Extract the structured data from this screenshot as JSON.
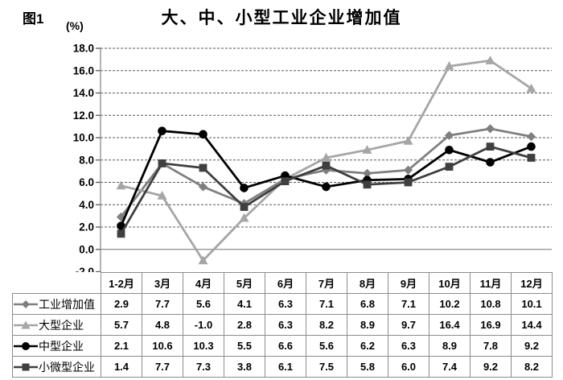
{
  "figure": {
    "label": "图1",
    "unit": "(%)",
    "title": "大、中、小型工业企业增加值"
  },
  "chart_data": {
    "type": "line",
    "title": "大、中、小型工业企业增加值",
    "ylabel": "(%)",
    "ylim": [
      -2.0,
      18.0
    ],
    "ytick_step": 2.0,
    "grid": "horizontal-dashed",
    "legend_position": "data-table-rows",
    "categories": [
      "1-2月",
      "3月",
      "4月",
      "5月",
      "6月",
      "7月",
      "8月",
      "9月",
      "10月",
      "11月",
      "12月"
    ],
    "series": [
      {
        "name": "工业增加值",
        "marker": "diamond",
        "color": "#7F7F7F",
        "values": [
          2.9,
          7.7,
          5.6,
          4.1,
          6.3,
          7.1,
          6.8,
          7.1,
          10.2,
          10.8,
          10.1
        ]
      },
      {
        "name": "大型企业",
        "marker": "triangle",
        "color": "#A6A6A6",
        "values": [
          5.7,
          4.8,
          -1.0,
          2.8,
          6.3,
          8.2,
          8.9,
          9.7,
          16.4,
          16.9,
          14.4
        ]
      },
      {
        "name": "中型企业",
        "marker": "circle",
        "color": "#000000",
        "values": [
          2.1,
          10.6,
          10.3,
          5.5,
          6.6,
          5.6,
          6.2,
          6.3,
          8.9,
          7.8,
          9.2
        ]
      },
      {
        "name": "小微型企业",
        "marker": "square",
        "color": "#3F3F3F",
        "values": [
          1.4,
          7.7,
          7.3,
          3.8,
          6.1,
          7.5,
          5.8,
          6.0,
          7.4,
          9.2,
          8.2
        ]
      }
    ],
    "style": {
      "gridline_color": "#595959",
      "zero_line_color": "#8c8c8c",
      "axis_color": "#9a9a9a",
      "table_border_color": "#8c8c8c"
    }
  }
}
